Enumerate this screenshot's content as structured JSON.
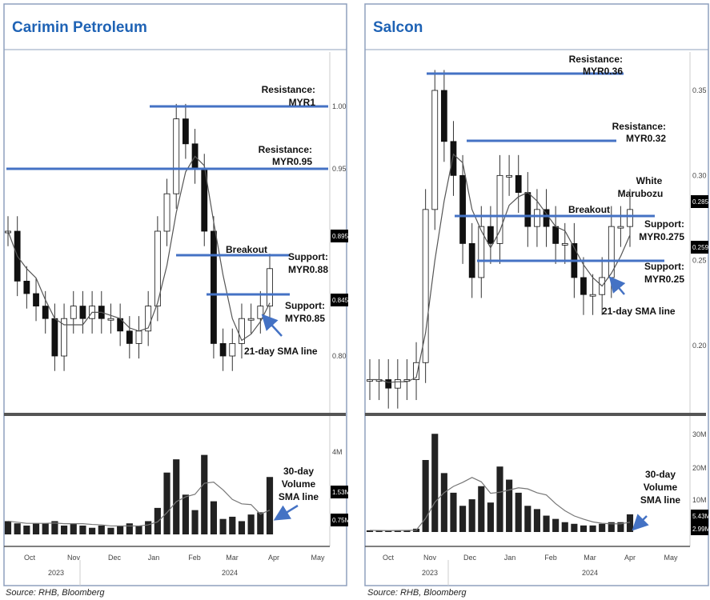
{
  "source": "Source: RHB, Bloomberg",
  "colors": {
    "annotation_line": "#4472c4",
    "title": "#1f63b5",
    "panel_border": "#8fa0bd",
    "candle_down": "#111111",
    "candle_up": "#ffffff",
    "sma": "#555555",
    "volume": "#222222"
  },
  "chart_data": [
    {
      "title": "Carimin Petroleum",
      "type": "candlestick",
      "x_ticks": [
        "Oct",
        "Nov",
        "Dec",
        "Jan",
        "Feb",
        "Mar",
        "Apr",
        "May"
      ],
      "years": [
        "2023",
        "2024"
      ],
      "y_ticks": [
        "1.00",
        "0.95",
        "0.80"
      ],
      "ylim": [
        0.78,
        1.04
      ],
      "price_tags": [
        "0.895",
        "0.845"
      ],
      "volume_ticks": [
        "4M"
      ],
      "volume_tags": [
        "1.53M",
        "0.75M"
      ],
      "volume_max": 5,
      "dates": [
        "2023-09-15",
        "2023-09-22",
        "2023-09-29",
        "2023-10-06",
        "2023-10-13",
        "2023-10-20",
        "2023-10-27",
        "2023-11-03",
        "2023-11-10",
        "2023-11-17",
        "2023-11-24",
        "2023-12-01",
        "2023-12-08",
        "2023-12-15",
        "2023-12-22",
        "2023-12-29",
        "2024-01-05",
        "2024-01-12",
        "2024-01-19",
        "2024-01-26",
        "2024-02-02",
        "2024-02-09",
        "2024-02-16",
        "2024-02-23",
        "2024-03-01",
        "2024-03-08",
        "2024-03-15",
        "2024-03-22",
        "2024-03-29"
      ],
      "close": [
        0.9,
        0.86,
        0.85,
        0.84,
        0.83,
        0.8,
        0.83,
        0.84,
        0.83,
        0.84,
        0.83,
        0.83,
        0.82,
        0.81,
        0.82,
        0.84,
        0.9,
        0.93,
        0.99,
        0.97,
        0.95,
        0.9,
        0.81,
        0.8,
        0.81,
        0.83,
        0.83,
        0.84,
        0.87
      ],
      "volume_m": [
        0.6,
        0.5,
        0.4,
        0.5,
        0.5,
        0.6,
        0.4,
        0.5,
        0.4,
        0.3,
        0.4,
        0.3,
        0.4,
        0.5,
        0.4,
        0.6,
        1.2,
        2.8,
        3.4,
        1.8,
        1.1,
        3.6,
        1.5,
        0.7,
        0.8,
        0.6,
        0.9,
        1.0,
        2.6
      ],
      "annotations": {
        "resistance1": [
          "Resistance:",
          "MYR1"
        ],
        "resistance2": [
          "Resistance:",
          "MYR0.95"
        ],
        "breakout": "Breakout",
        "support1": [
          "Support:",
          "MYR0.88"
        ],
        "support2": [
          "Support:",
          "MYR0.85"
        ],
        "sma": "21-day SMA line",
        "vol_sma": [
          "30-day",
          "Volume",
          "SMA line"
        ]
      }
    },
    {
      "title": "Salcon",
      "type": "candlestick",
      "x_ticks": [
        "Oct",
        "Nov",
        "Dec",
        "Jan",
        "Feb",
        "Mar",
        "Apr",
        "May"
      ],
      "years": [
        "2023",
        "2024"
      ],
      "y_ticks": [
        "0.35",
        "0.30",
        "0.25",
        "0.20"
      ],
      "ylim": [
        0.16,
        0.36
      ],
      "price_tags": [
        "0.285",
        "0.259"
      ],
      "volume_ticks": [
        "30M",
        "20M",
        "10M"
      ],
      "volume_tags": [
        "5.43M",
        "2.99M"
      ],
      "volume_max": 33,
      "dates": [
        "2023-09-15",
        "2023-09-22",
        "2023-09-29",
        "2023-10-06",
        "2023-10-13",
        "2023-10-20",
        "2023-10-27",
        "2023-11-03",
        "2023-11-10",
        "2023-11-17",
        "2023-11-24",
        "2023-12-01",
        "2023-12-08",
        "2023-12-15",
        "2023-12-22",
        "2023-12-29",
        "2024-01-05",
        "2024-01-12",
        "2024-01-19",
        "2024-01-26",
        "2024-02-02",
        "2024-02-09",
        "2024-02-16",
        "2024-02-23",
        "2024-03-01",
        "2024-03-08",
        "2024-03-15",
        "2024-03-22",
        "2024-03-29"
      ],
      "close": [
        0.18,
        0.18,
        0.175,
        0.18,
        0.18,
        0.19,
        0.28,
        0.35,
        0.32,
        0.3,
        0.26,
        0.24,
        0.27,
        0.26,
        0.3,
        0.3,
        0.29,
        0.27,
        0.28,
        0.27,
        0.26,
        0.26,
        0.24,
        0.23,
        0.23,
        0.24,
        0.27,
        0.27,
        0.28
      ],
      "volume_m": [
        0.5,
        0.4,
        0.4,
        0.5,
        0.6,
        1.0,
        22,
        30,
        18,
        12,
        8,
        10,
        14,
        9,
        20,
        16,
        12,
        8,
        7,
        5,
        4,
        3,
        2.5,
        2,
        2,
        2.5,
        3,
        3,
        5.4
      ],
      "annotations": {
        "resistance1": [
          "Resistance:",
          "MYR0.36"
        ],
        "resistance2": [
          "Resistance:",
          "MYR0.32"
        ],
        "marubozu": [
          "White",
          "Marubozu"
        ],
        "breakout": "Breakout",
        "support1": [
          "Support:",
          "MYR0.275"
        ],
        "support2": [
          "Support:",
          "MYR0.25"
        ],
        "sma": "21-day SMA line",
        "vol_sma": [
          "30-day",
          "Volume",
          "SMA line"
        ]
      }
    }
  ]
}
